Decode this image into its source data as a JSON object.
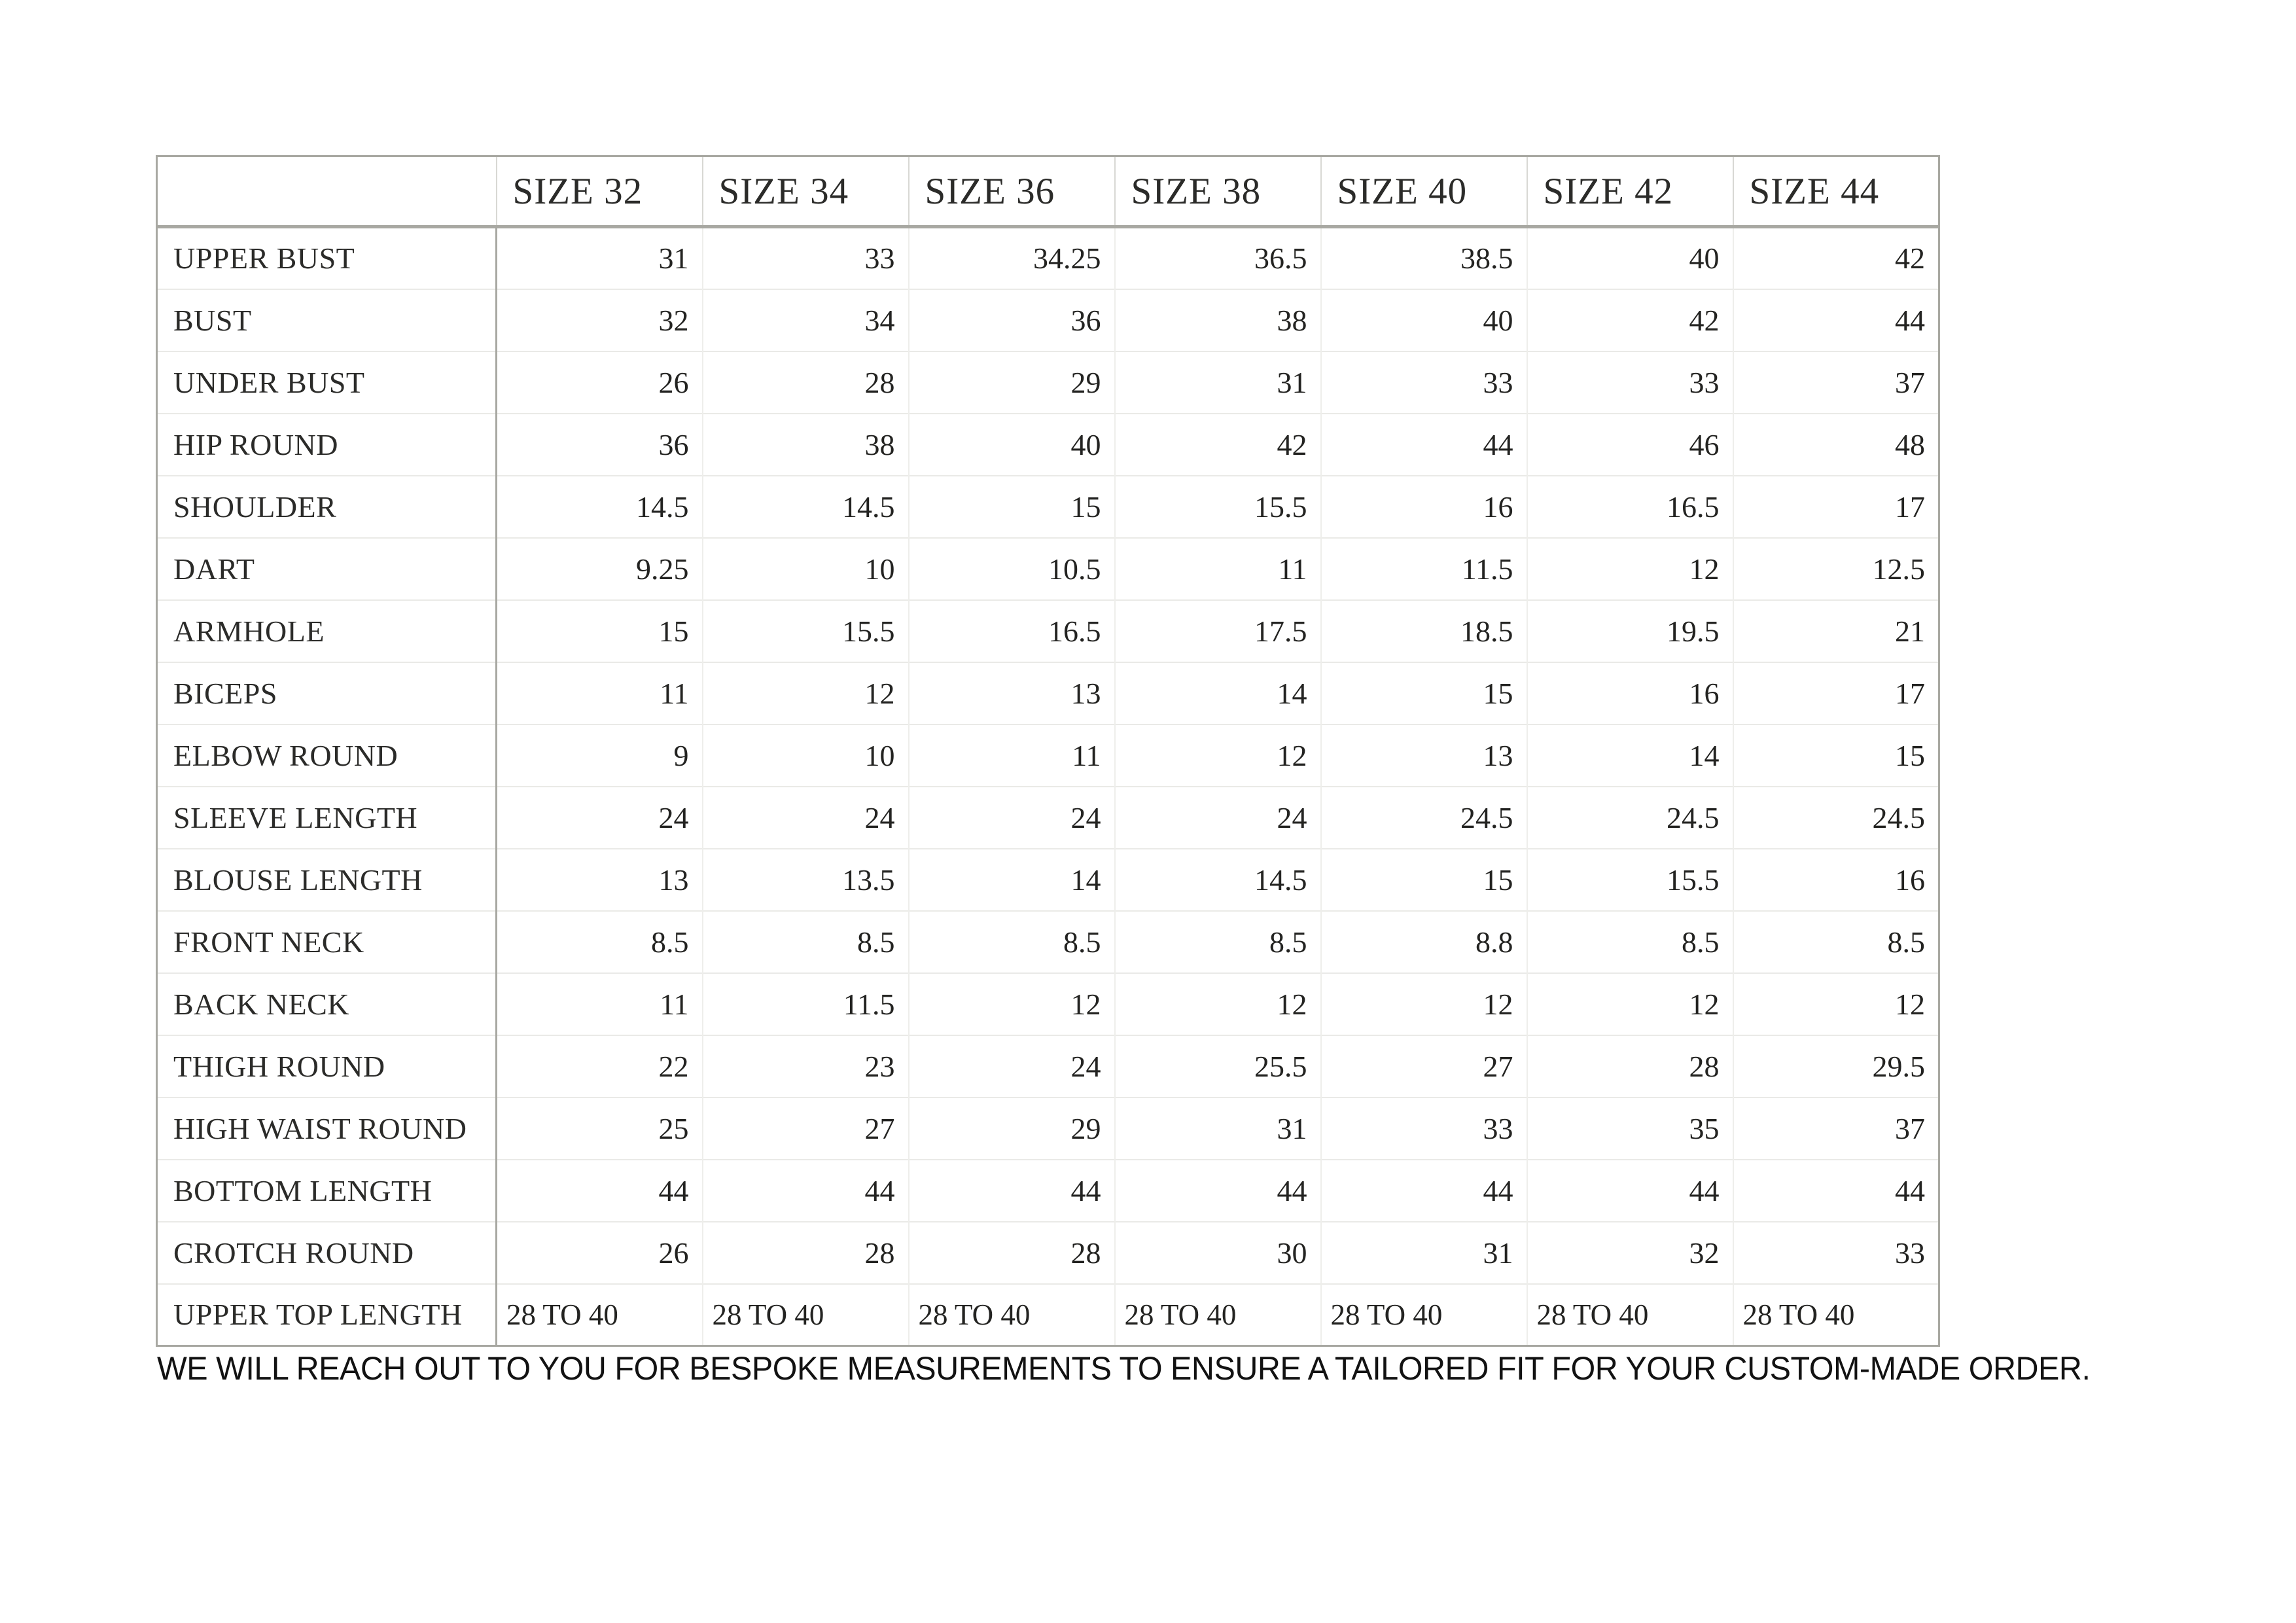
{
  "table": {
    "corner_cell": "",
    "columns": [
      "SIZE 32",
      "SIZE 34",
      "SIZE 36",
      "SIZE 38",
      "SIZE 40",
      "SIZE 42",
      "SIZE 44"
    ],
    "rows": [
      {
        "label": "UPPER BUST",
        "values": [
          "31",
          "33",
          "34.25",
          "36.5",
          "38.5",
          "40",
          "42"
        ]
      },
      {
        "label": "BUST",
        "values": [
          "32",
          "34",
          "36",
          "38",
          "40",
          "42",
          "44"
        ]
      },
      {
        "label": "UNDER BUST",
        "values": [
          "26",
          "28",
          "29",
          "31",
          "33",
          "33",
          "37"
        ]
      },
      {
        "label": "HIP ROUND",
        "values": [
          "36",
          "38",
          "40",
          "42",
          "44",
          "46",
          "48"
        ]
      },
      {
        "label": "SHOULDER",
        "values": [
          "14.5",
          "14.5",
          "15",
          "15.5",
          "16",
          "16.5",
          "17"
        ]
      },
      {
        "label": "DART",
        "values": [
          "9.25",
          "10",
          "10.5",
          "11",
          "11.5",
          "12",
          "12.5"
        ]
      },
      {
        "label": "ARMHOLE",
        "values": [
          "15",
          "15.5",
          "16.5",
          "17.5",
          "18.5",
          "19.5",
          "21"
        ]
      },
      {
        "label": "BICEPS",
        "values": [
          "11",
          "12",
          "13",
          "14",
          "15",
          "16",
          "17"
        ]
      },
      {
        "label": "ELBOW ROUND",
        "values": [
          "9",
          "10",
          "11",
          "12",
          "13",
          "14",
          "15"
        ]
      },
      {
        "label": "SLEEVE LENGTH",
        "values": [
          "24",
          "24",
          "24",
          "24",
          "24.5",
          "24.5",
          "24.5"
        ]
      },
      {
        "label": "BLOUSE LENGTH",
        "values": [
          "13",
          "13.5",
          "14",
          "14.5",
          "15",
          "15.5",
          "16"
        ]
      },
      {
        "label": "FRONT NECK",
        "values": [
          "8.5",
          "8.5",
          "8.5",
          "8.5",
          "8.8",
          "8.5",
          "8.5"
        ]
      },
      {
        "label": "BACK NECK",
        "values": [
          "11",
          "11.5",
          "12",
          "12",
          "12",
          "12",
          "12"
        ]
      },
      {
        "label": "THIGH ROUND",
        "values": [
          "22",
          "23",
          "24",
          "25.5",
          "27",
          "28",
          "29.5"
        ]
      },
      {
        "label": "HIGH WAIST ROUND",
        "values": [
          "25",
          "27",
          "29",
          "31",
          "33",
          "35",
          "37"
        ]
      },
      {
        "label": "BOTTOM LENGTH",
        "values": [
          "44",
          "44",
          "44",
          "44",
          "44",
          "44",
          "44"
        ]
      },
      {
        "label": "CROTCH ROUND",
        "values": [
          "26",
          "28",
          "28",
          "30",
          "31",
          "32",
          "33"
        ]
      },
      {
        "label": "UPPER TOP LENGTH",
        "values": [
          "28 TO 40",
          "28 TO 40",
          "28 TO 40",
          "28 TO 40",
          "28 TO 40",
          "28 TO 40",
          "28 TO 40"
        ],
        "align": "left"
      }
    ]
  },
  "footer": {
    "note": "WE WILL REACH OUT TO YOU FOR BESPOKE MEASUREMENTS TO ENSURE A TAILORED FIT FOR YOUR CUSTOM-MADE ORDER."
  },
  "colors": {
    "background": "#ffffff",
    "table_text": "#262624",
    "outer_border": "#a8a8a2",
    "header_separator": "#a8a8a2",
    "inner_gridline": "#eaeae7",
    "footer_text": "#121212"
  }
}
